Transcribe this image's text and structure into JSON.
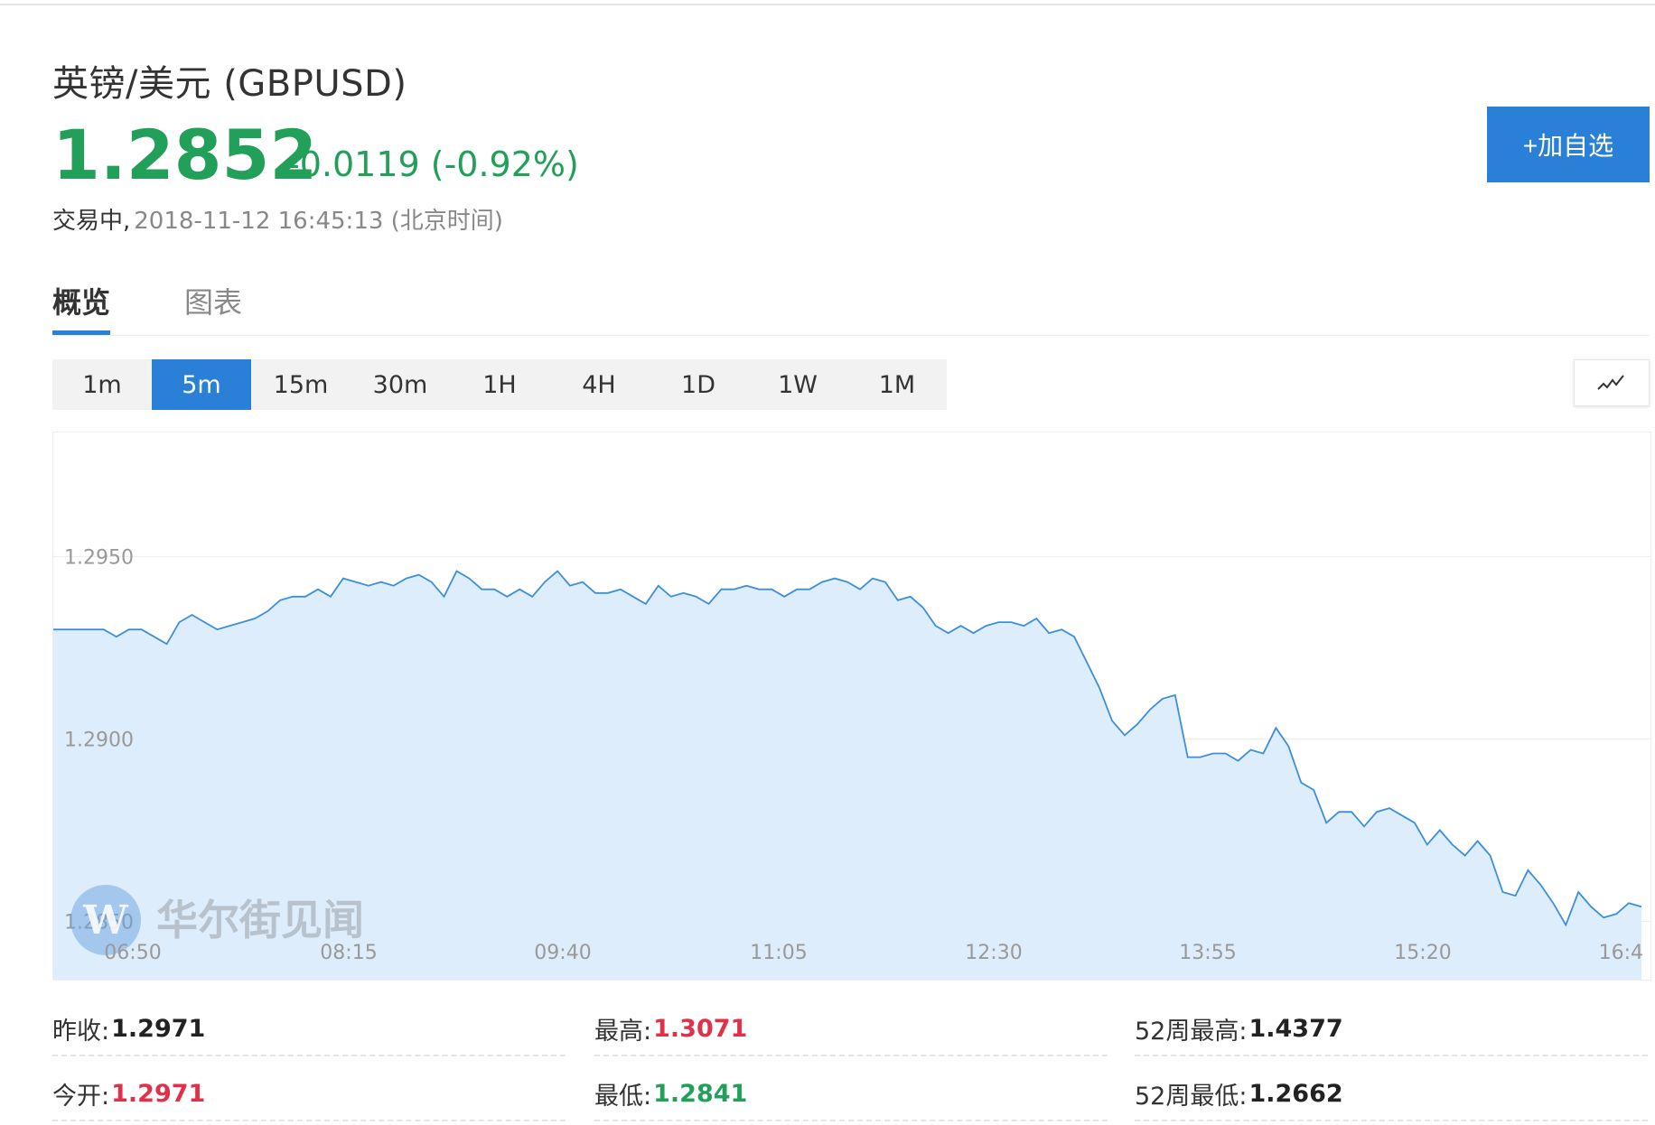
{
  "quote": {
    "title": "英镑/美元 (GBPUSD)",
    "price": "1.2852",
    "change": "-0.0119 (-0.92%)",
    "status": "交易中,",
    "timestamp": "2018-11-12 16:45:13 (北京时间)"
  },
  "watch_button": "+加自选",
  "tabs": [
    "概览",
    "图表"
  ],
  "periods": [
    "1m",
    "5m",
    "15m",
    "30m",
    "1H",
    "4H",
    "1D",
    "1W",
    "1M"
  ],
  "active_period": "5m",
  "watermark": "华尔街见闻",
  "colors": {
    "up": "#e0304a",
    "down": "#22a05a",
    "accent": "#2a7fd6",
    "line": "#3b8fdd",
    "area": "#deedfb"
  },
  "chart_data": {
    "type": "area",
    "x_ticks": [
      "06:50",
      "08:15",
      "09:40",
      "11:05",
      "12:30",
      "13:55",
      "15:20",
      "16:4"
    ],
    "y_ticks": [
      "1.2950",
      "1.2900",
      "1.2850"
    ],
    "ylim": [
      1.2834,
      1.2984
    ],
    "grid": true,
    "series": [
      {
        "values": [
          1.293,
          1.293,
          1.293,
          1.293,
          1.293,
          1.2928,
          1.293,
          1.293,
          1.2928,
          1.2926,
          1.2932,
          1.2934,
          1.2932,
          1.293,
          1.2931,
          1.2932,
          1.2933,
          1.2935,
          1.2938,
          1.2939,
          1.2939,
          1.2941,
          1.2939,
          1.2944,
          1.2943,
          1.2942,
          1.2943,
          1.2942,
          1.2944,
          1.2945,
          1.2943,
          1.2939,
          1.2946,
          1.2944,
          1.2941,
          1.2941,
          1.2939,
          1.2941,
          1.2939,
          1.2943,
          1.2946,
          1.2942,
          1.2943,
          1.294,
          1.294,
          1.2941,
          1.2939,
          1.2937,
          1.2942,
          1.2939,
          1.294,
          1.2939,
          1.2937,
          1.2941,
          1.2941,
          1.2942,
          1.2941,
          1.2941,
          1.2939,
          1.2941,
          1.2941,
          1.2943,
          1.2944,
          1.2943,
          1.2941,
          1.2944,
          1.2943,
          1.2938,
          1.2939,
          1.2936,
          1.2931,
          1.2929,
          1.2931,
          1.2929,
          1.2931,
          1.2932,
          1.2932,
          1.2931,
          1.2933,
          1.2929,
          1.293,
          1.2928,
          1.2921,
          1.2914,
          1.2905,
          1.2901,
          1.2904,
          1.2908,
          1.2911,
          1.2912,
          1.2895,
          1.2895,
          1.2896,
          1.2896,
          1.2894,
          1.2897,
          1.2896,
          1.2903,
          1.2898,
          1.2888,
          1.2886,
          1.2877,
          1.288,
          1.288,
          1.2876,
          1.288,
          1.2881,
          1.2879,
          1.2877,
          1.2871,
          1.2875,
          1.2871,
          1.2868,
          1.2872,
          1.2868,
          1.2858,
          1.2857,
          1.2864,
          1.286,
          1.2855,
          1.2849,
          1.2858,
          1.2854,
          1.2851,
          1.2852,
          1.2855,
          1.2854
        ]
      }
    ]
  },
  "stats": [
    {
      "label": "昨收:",
      "value": "1.2971",
      "tone": "dark"
    },
    {
      "label": "最高:",
      "value": "1.3071",
      "tone": "red"
    },
    {
      "label": "52周最高:",
      "value": "1.4377",
      "tone": "dark"
    },
    {
      "label": "今开:",
      "value": "1.2971",
      "tone": "red"
    },
    {
      "label": "最低:",
      "value": "1.2841",
      "tone": "green"
    },
    {
      "label": "52周最低:",
      "value": "1.2662",
      "tone": "dark"
    }
  ]
}
